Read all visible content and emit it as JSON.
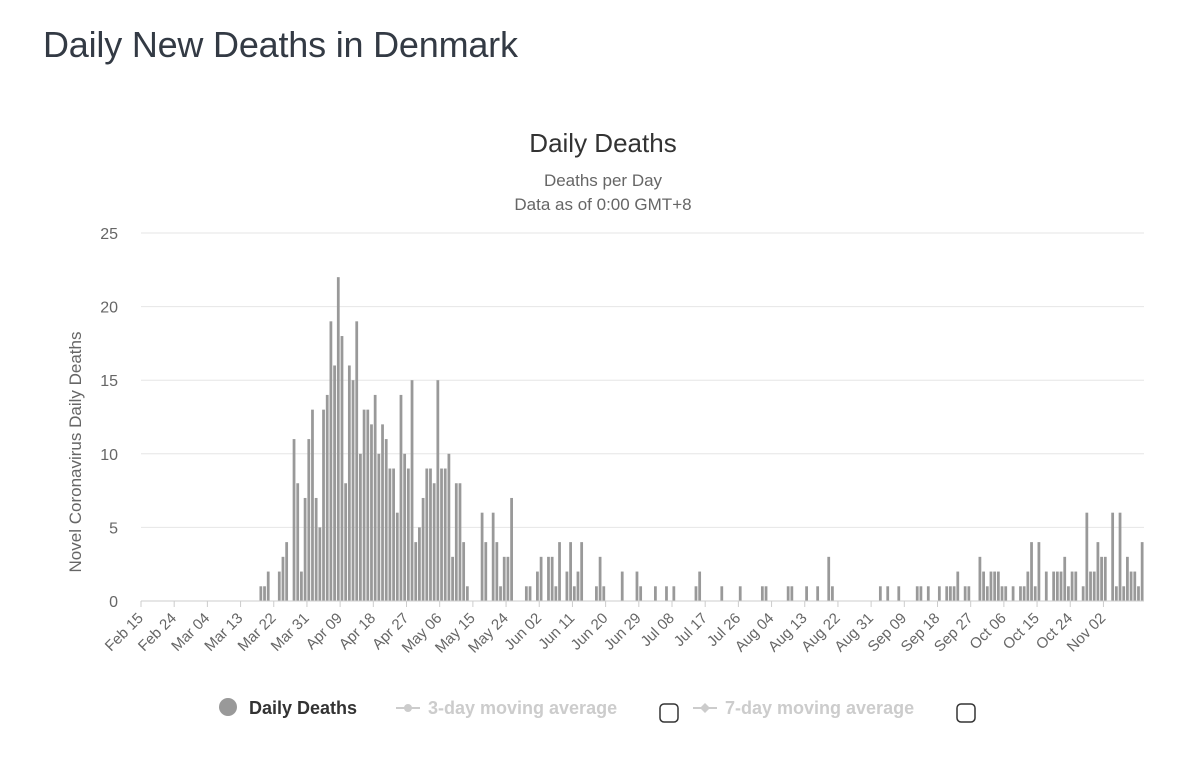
{
  "page": {
    "title": "Daily New Deaths in Denmark"
  },
  "colors": {
    "bar": "#999999",
    "grid": "#e6e6e6",
    "axis_text": "#666666",
    "title": "#333333",
    "legend_inactive": "#cccccc",
    "legend_active": "#333333"
  },
  "chart_data": {
    "type": "bar",
    "title": "Daily Deaths",
    "subtitle_line1": "Deaths per Day",
    "subtitle_line2": "Data as of 0:00 GMT+8",
    "ylabel": "Novel Coronavirus Daily Deaths",
    "xlabel": "",
    "ylim": [
      0,
      25
    ],
    "y_ticks": [
      0,
      5,
      10,
      15,
      20,
      25
    ],
    "x_tick_labels": [
      "Feb 15",
      "Feb 24",
      "Mar 04",
      "Mar 13",
      "Mar 22",
      "Mar 31",
      "Apr 09",
      "Apr 18",
      "Apr 27",
      "May 06",
      "May 15",
      "May 24",
      "Jun 02",
      "Jun 11",
      "Jun 20",
      "Jun 29",
      "Jul 08",
      "Jul 17",
      "Jul 26",
      "Aug 04",
      "Aug 13",
      "Aug 22",
      "Aug 31",
      "Sep 09",
      "Sep 18",
      "Sep 27",
      "Oct 06",
      "Oct 15",
      "Oct 24",
      "Nov 02"
    ],
    "date_range": [
      "Feb 15",
      "Nov 03"
    ],
    "series": [
      {
        "name": "Daily Deaths",
        "values": [
          0,
          0,
          0,
          0,
          0,
          0,
          0,
          0,
          0,
          0,
          0,
          0,
          0,
          0,
          0,
          0,
          0,
          0,
          0,
          0,
          0,
          0,
          0,
          0,
          0,
          0,
          0,
          0,
          0,
          0,
          0,
          0,
          1,
          1,
          2,
          0,
          0,
          2,
          3,
          4,
          0,
          11,
          8,
          2,
          7,
          11,
          13,
          7,
          5,
          13,
          14,
          19,
          16,
          22,
          18,
          8,
          16,
          15,
          19,
          10,
          13,
          13,
          12,
          14,
          10,
          12,
          11,
          9,
          9,
          6,
          14,
          10,
          9,
          15,
          4,
          5,
          7,
          9,
          9,
          8,
          15,
          9,
          9,
          10,
          3,
          8,
          8,
          4,
          1,
          0,
          0,
          0,
          6,
          4,
          0,
          6,
          4,
          1,
          3,
          3,
          7,
          0,
          0,
          0,
          1,
          1,
          0,
          2,
          3,
          0,
          3,
          3,
          1,
          4,
          0,
          2,
          4,
          1,
          2,
          4,
          0,
          0,
          0,
          1,
          3,
          1,
          0,
          0,
          0,
          0,
          2,
          0,
          0,
          0,
          2,
          1,
          0,
          0,
          0,
          1,
          0,
          0,
          1,
          0,
          1,
          0,
          0,
          0,
          0,
          0,
          1,
          2,
          0,
          0,
          0,
          0,
          0,
          1,
          0,
          0,
          0,
          0,
          1,
          0,
          0,
          0,
          0,
          0,
          1,
          1,
          0,
          0,
          0,
          0,
          0,
          1,
          1,
          0,
          0,
          0,
          1,
          0,
          0,
          1,
          0,
          0,
          3,
          1,
          0,
          0,
          0,
          0,
          0,
          0,
          0,
          0,
          0,
          0,
          0,
          0,
          1,
          0,
          1,
          0,
          0,
          1,
          0,
          0,
          0,
          0,
          1,
          1,
          0,
          1,
          0,
          0,
          1,
          0,
          1,
          1,
          1,
          2,
          0,
          1,
          1,
          0,
          0,
          3,
          2,
          1,
          2,
          2,
          2,
          1,
          1,
          0,
          1,
          0,
          1,
          1,
          2,
          4,
          1,
          4,
          0,
          2,
          0,
          2,
          2,
          2,
          3,
          1,
          2,
          2,
          0,
          1,
          6,
          2,
          2,
          4,
          3,
          3,
          0,
          6,
          1,
          6,
          1,
          3,
          2,
          2,
          1,
          4
        ]
      },
      {
        "name": "3-day moving average",
        "visible": false
      },
      {
        "name": "7-day moving average",
        "visible": false
      }
    ]
  },
  "legend": {
    "items": [
      {
        "label": "Daily Deaths",
        "active": true
      },
      {
        "label": "3-day moving average",
        "active": false
      },
      {
        "label": "7-day moving average",
        "active": false
      }
    ]
  }
}
